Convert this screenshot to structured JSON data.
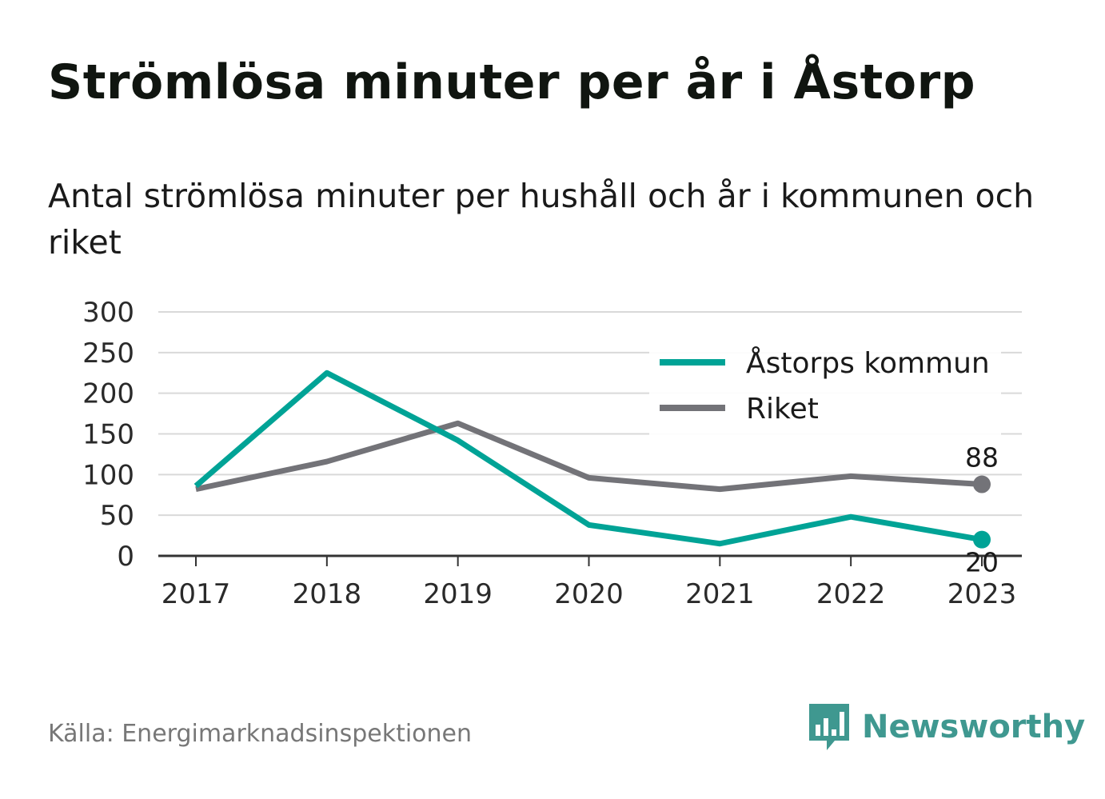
{
  "header": {
    "title": "Strömlösa minuter per år i Åstorp",
    "subtitle": "Antal strömlösa minuter per hushåll och år i kommunen och riket"
  },
  "footer": {
    "source": "Källa: Energimarknadsinspektionen",
    "brand": "Newsworthy",
    "brand_icon": "bar-chart-speech-bubble-icon"
  },
  "colors": {
    "kommun": "#00a396",
    "riket": "#737378",
    "grid": "#d9d9d9",
    "axis": "#333333",
    "brand": "#3f9890"
  },
  "chart_data": {
    "type": "line",
    "title": "Strömlösa minuter per år i Åstorp",
    "subtitle": "Antal strömlösa minuter per hushåll och år i kommunen och riket",
    "x": [
      "2017",
      "2018",
      "2019",
      "2020",
      "2021",
      "2022",
      "2023"
    ],
    "ylim": [
      0,
      300
    ],
    "yticks": [
      "0",
      "50",
      "100",
      "150",
      "200",
      "250",
      "300"
    ],
    "grid": true,
    "legend": "top-right",
    "series": [
      {
        "name": "Åstorps kommun",
        "values": [
          86,
          225,
          142,
          38,
          15,
          48,
          20
        ],
        "color": "#00a396",
        "end_label": "20"
      },
      {
        "name": "Riket",
        "values": [
          82,
          116,
          163,
          96,
          82,
          98,
          88
        ],
        "color": "#737378",
        "end_label": "88"
      }
    ]
  }
}
